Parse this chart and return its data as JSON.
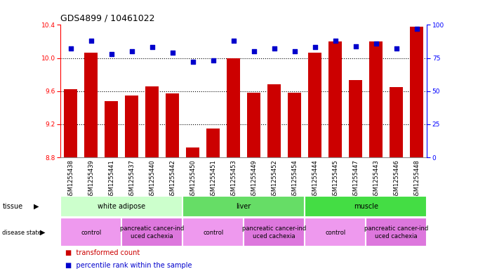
{
  "title": "GDS4899 / 10461022",
  "samples": [
    "GSM1255438",
    "GSM1255439",
    "GSM1255441",
    "GSM1255437",
    "GSM1255440",
    "GSM1255442",
    "GSM1255450",
    "GSM1255451",
    "GSM1255453",
    "GSM1255449",
    "GSM1255452",
    "GSM1255454",
    "GSM1255444",
    "GSM1255445",
    "GSM1255447",
    "GSM1255443",
    "GSM1255446",
    "GSM1255448"
  ],
  "transformed_count": [
    9.62,
    10.06,
    9.48,
    9.55,
    9.66,
    9.57,
    8.92,
    9.15,
    10.0,
    9.58,
    9.68,
    9.58,
    10.06,
    10.2,
    9.73,
    10.2,
    9.65,
    10.38
  ],
  "percentile_rank": [
    82,
    88,
    78,
    80,
    83,
    79,
    72,
    73,
    88,
    80,
    82,
    80,
    83,
    88,
    84,
    86,
    82,
    97
  ],
  "ylim_left": [
    8.8,
    10.4
  ],
  "ylim_right": [
    0,
    100
  ],
  "yticks_left": [
    8.8,
    9.2,
    9.6,
    10.0,
    10.4
  ],
  "yticks_right": [
    0,
    25,
    50,
    75,
    100
  ],
  "bar_color": "#CC0000",
  "dot_color": "#0000CC",
  "gridlines": [
    9.2,
    9.6,
    10.0
  ],
  "tissue_groups": [
    {
      "label": "white adipose",
      "start": 0,
      "end": 6,
      "color": "#CCFFCC"
    },
    {
      "label": "liver",
      "start": 6,
      "end": 12,
      "color": "#66EE66"
    },
    {
      "label": "muscle",
      "start": 12,
      "end": 18,
      "color": "#66EE66"
    }
  ],
  "disease_groups": [
    {
      "label": "control",
      "start": 0,
      "end": 3,
      "color": "#EE99EE"
    },
    {
      "label": "pancreatic cancer-ind\nuced cachexia",
      "start": 3,
      "end": 6,
      "color": "#EE99EE"
    },
    {
      "label": "control",
      "start": 6,
      "end": 9,
      "color": "#EE99EE"
    },
    {
      "label": "pancreatic cancer-ind\nuced cachexia",
      "start": 9,
      "end": 12,
      "color": "#EE99EE"
    },
    {
      "label": "control",
      "start": 12,
      "end": 15,
      "color": "#EE99EE"
    },
    {
      "label": "pancreatic cancer-ind\nuced cachexia",
      "start": 15,
      "end": 18,
      "color": "#EE99EE"
    }
  ],
  "legend_items": [
    {
      "label": "transformed count",
      "color": "#CC0000"
    },
    {
      "label": "percentile rank within the sample",
      "color": "#0000CC"
    }
  ],
  "bg_color": "#FFFFFF",
  "title_fontsize": 9,
  "axis_label_fontsize": 7,
  "tick_label_fontsize": 6.5,
  "sample_label_fontsize": 6,
  "group_label_fontsize": 7,
  "disease_label_fontsize": 6
}
